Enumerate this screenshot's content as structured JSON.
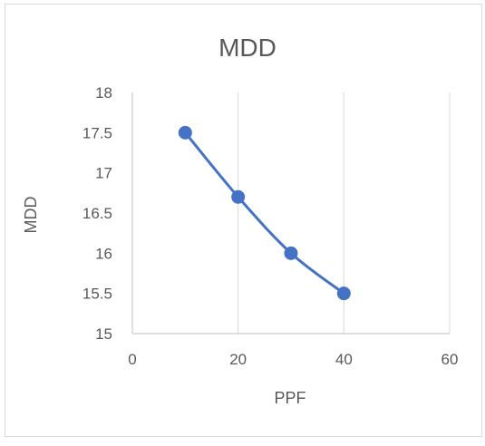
{
  "chart_data": {
    "type": "scatter",
    "title": "MDD",
    "xlabel": "PPF",
    "ylabel": "MDD",
    "xlim": [
      0,
      60
    ],
    "ylim": [
      15,
      18
    ],
    "xticks": [
      0,
      20,
      40,
      60
    ],
    "yticks": [
      15,
      15.5,
      16,
      16.5,
      17,
      17.5,
      18
    ],
    "xtick_labels": [
      "0",
      "20",
      "40",
      "60"
    ],
    "ytick_labels": [
      "15",
      "15.5",
      "16",
      "16.5",
      "17",
      "17.5",
      "18"
    ],
    "vertical_grid": true,
    "horizontal_grid": false,
    "smooth_line": true,
    "legend": "none",
    "series": [
      {
        "x": [
          10,
          20,
          30,
          40
        ],
        "y": [
          17.5,
          16.7,
          16.0,
          15.5
        ],
        "color": "#4472C4"
      }
    ]
  },
  "colors": {
    "background": "#ffffff",
    "frame": "#d9d9d9",
    "grid": "#d9d9d9",
    "axis": "#bfbfbf",
    "text": "#595959",
    "series": "#4472C4"
  }
}
